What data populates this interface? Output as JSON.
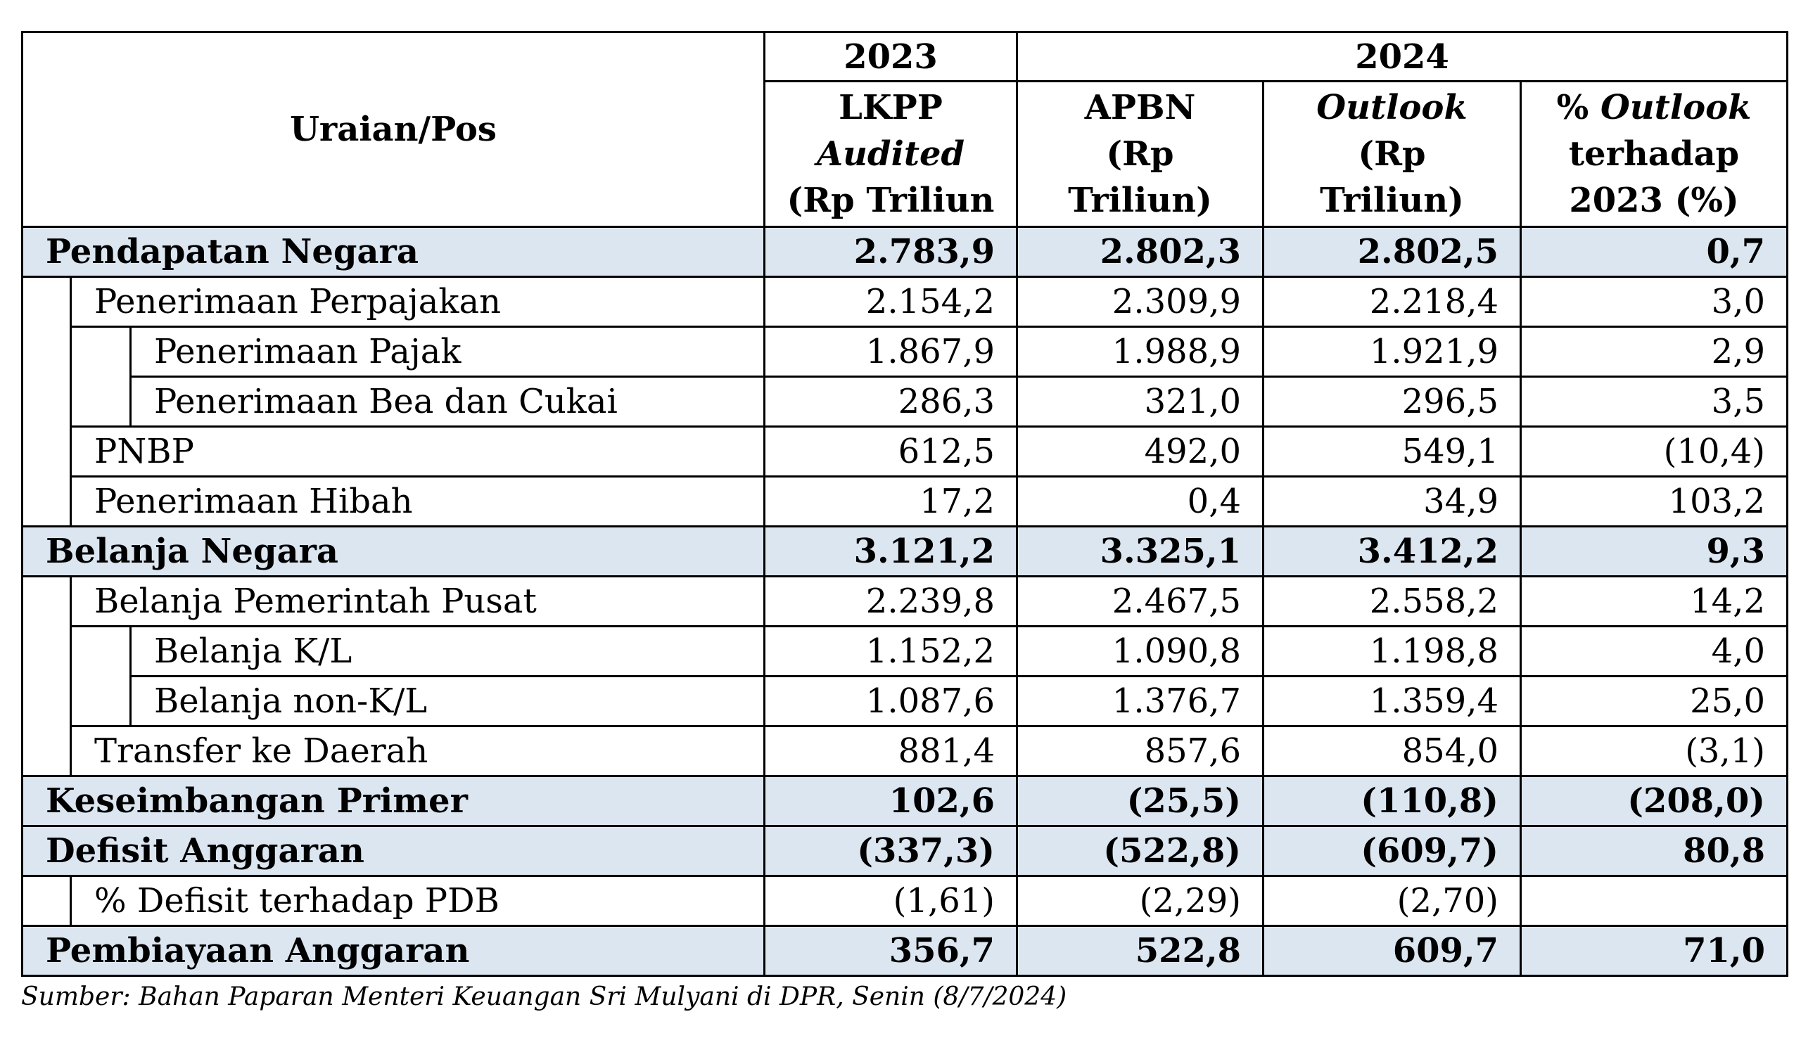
{
  "chart_data": {
    "type": "table",
    "header": {
      "label_column": "Uraian/Pos",
      "year_groups": [
        "2023",
        "2024"
      ],
      "columns": [
        {
          "line1": "LKPP",
          "line2": "Audited",
          "line3": "(Rp Triliun"
        },
        {
          "line1": "APBN",
          "line2": "(Rp",
          "line3": "Triliun)"
        },
        {
          "line1": "Outlook",
          "line2": "(Rp",
          "line3": "Triliun)"
        },
        {
          "line1_prefix": "%",
          "line1_italic": "Outlook",
          "line2": "terhadap",
          "line3": "2023 (%)"
        }
      ]
    },
    "sections": [
      {
        "label": "Pendapatan Negara",
        "values": [
          "2.783,9",
          "2.802,3",
          "2.802,5",
          "0,7"
        ],
        "children": [
          {
            "label": "Penerimaan Perpajakan",
            "values": [
              "2.154,2",
              "2.309,9",
              "2.218,4",
              "3,0"
            ],
            "children": [
              {
                "label": "Penerimaan Pajak",
                "values": [
                  "1.867,9",
                  "1.988,9",
                  "1.921,9",
                  "2,9"
                ]
              },
              {
                "label": "Penerimaan Bea dan Cukai",
                "values": [
                  "286,3",
                  "321,0",
                  "296,5",
                  "3,5"
                ]
              }
            ]
          },
          {
            "label": "PNBP",
            "values": [
              "612,5",
              "492,0",
              "549,1",
              "(10,4)"
            ]
          },
          {
            "label": "Penerimaan Hibah",
            "values": [
              "17,2",
              "0,4",
              "34,9",
              "103,2"
            ]
          }
        ]
      },
      {
        "label": "Belanja Negara",
        "values": [
          "3.121,2",
          "3.325,1",
          "3.412,2",
          "9,3"
        ],
        "children": [
          {
            "label": "Belanja Pemerintah Pusat",
            "values": [
              "2.239,8",
              "2.467,5",
              "2.558,2",
              "14,2"
            ],
            "children": [
              {
                "label": "Belanja K/L",
                "values": [
                  "1.152,2",
                  "1.090,8",
                  "1.198,8",
                  "4,0"
                ]
              },
              {
                "label": "Belanja non-K/L",
                "values": [
                  "1.087,6",
                  "1.376,7",
                  "1.359,4",
                  "25,0"
                ]
              }
            ]
          },
          {
            "label": "Transfer ke Daerah",
            "values": [
              "881,4",
              "857,6",
              "854,0",
              "(3,1)"
            ]
          }
        ]
      },
      {
        "label": "Keseimbangan Primer",
        "values": [
          "102,6",
          "(25,5)",
          "(110,8)",
          "(208,0)"
        ]
      },
      {
        "label": "Defisit Anggaran",
        "values": [
          "(337,3)",
          "(522,8)",
          "(609,7)",
          "80,8"
        ],
        "children": [
          {
            "label": "% Defisit terhadap PDB",
            "values": [
              "(1,61)",
              "(2,29)",
              "(2,70)",
              null
            ]
          }
        ]
      },
      {
        "label": "Pembiayaan Anggaran",
        "values": [
          "356,7",
          "522,8",
          "609,7",
          "71,0"
        ]
      }
    ]
  },
  "source_note": "Sumber: Bahan Paparan Menteri Keuangan Sri Mulyani di DPR, Senin (8/7/2024)",
  "colors": {
    "section_row_background": "#dce6f1",
    "border": "#000000"
  }
}
